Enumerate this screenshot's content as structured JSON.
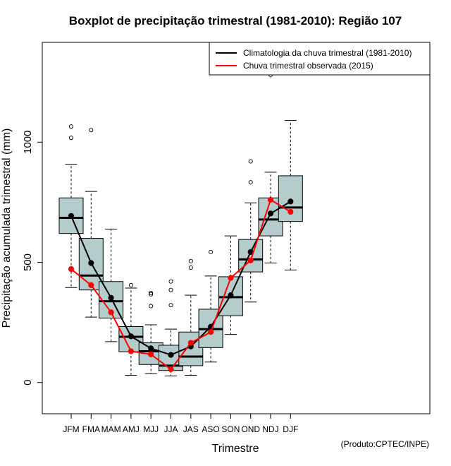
{
  "chart_data": {
    "type": "boxplot",
    "title": "Boxplot de precipitação trimestral (1981-2010): Região 107",
    "xlabel": "Trimestre",
    "ylabel": "Precipitação acumulada trimestral (mm)",
    "credit": "(Produto:CPTEC/INPE)",
    "categories": [
      "JFM",
      "FMA",
      "MAM",
      "AMJ",
      "MJJ",
      "JJA",
      "JAS",
      "ASO",
      "SON",
      "OND",
      "NDJ",
      "DJF"
    ],
    "ylim": [
      -130,
      1415
    ],
    "yticks": [
      0,
      500,
      1000
    ],
    "ytick_labels": [
      "0",
      "500",
      "1000"
    ],
    "legend": {
      "position": "top-right",
      "items": [
        {
          "label": "Climatologia da chuva trimestral (1981-2010)",
          "color": "#000000"
        },
        {
          "label": "Chuva trimestral observada (2015)",
          "color": "#ff0000"
        }
      ]
    },
    "boxes": [
      {
        "whisker_low": 395,
        "q1": 620,
        "median": 685,
        "q3": 768,
        "whisker_high": 908,
        "outliers": [
          1018,
          1065
        ]
      },
      {
        "whisker_low": 272,
        "q1": 385,
        "median": 445,
        "q3": 600,
        "whisker_high": 795,
        "outliers": [
          1050
        ]
      },
      {
        "whisker_low": 170,
        "q1": 268,
        "median": 338,
        "q3": 420,
        "whisker_high": 638,
        "outliers": []
      },
      {
        "whisker_low": 30,
        "q1": 128,
        "median": 190,
        "q3": 233,
        "whisker_high": 393,
        "outliers": [
          405
        ]
      },
      {
        "whisker_low": 37,
        "q1": 75,
        "median": 130,
        "q3": 165,
        "whisker_high": 240,
        "outliers": [
          318,
          367,
          372
        ]
      },
      {
        "whisker_low": 27,
        "q1": 50,
        "median": 70,
        "q3": 155,
        "whisker_high": 222,
        "outliers": [
          322,
          385,
          420
        ]
      },
      {
        "whisker_low": 30,
        "q1": 70,
        "median": 108,
        "q3": 210,
        "whisker_high": 363,
        "outliers": [
          478,
          505
        ]
      },
      {
        "whisker_low": 85,
        "q1": 145,
        "median": 222,
        "q3": 305,
        "whisker_high": 443,
        "outliers": [
          543
        ]
      },
      {
        "whisker_low": 200,
        "q1": 278,
        "median": 355,
        "q3": 440,
        "whisker_high": 610,
        "outliers": []
      },
      {
        "whisker_low": 335,
        "q1": 460,
        "median": 512,
        "q3": 595,
        "whisker_high": 747,
        "outliers": [
          833,
          920
        ]
      },
      {
        "whisker_low": 497,
        "q1": 610,
        "median": 678,
        "q3": 768,
        "whisker_high": 875,
        "outliers": [
          1280
        ]
      },
      {
        "whisker_low": 468,
        "q1": 670,
        "median": 728,
        "q3": 860,
        "whisker_high": 1090,
        "outliers": []
      }
    ],
    "series": [
      {
        "name": "Climatologia da chuva trimestral (1981-2010)",
        "color": "#000000",
        "values": [
          693,
          497,
          352,
          192,
          142,
          115,
          150,
          232,
          363,
          543,
          703,
          753
        ]
      },
      {
        "name": "Chuva trimestral observada (2015)",
        "color": "#ff0000",
        "values": [
          472,
          405,
          292,
          130,
          117,
          55,
          165,
          210,
          435,
          508,
          760,
          710
        ]
      }
    ],
    "colors": {
      "box_fill": "#b4cccb",
      "box_stroke": "#000000",
      "observed": "#ff0000",
      "climatology": "#000000"
    }
  }
}
